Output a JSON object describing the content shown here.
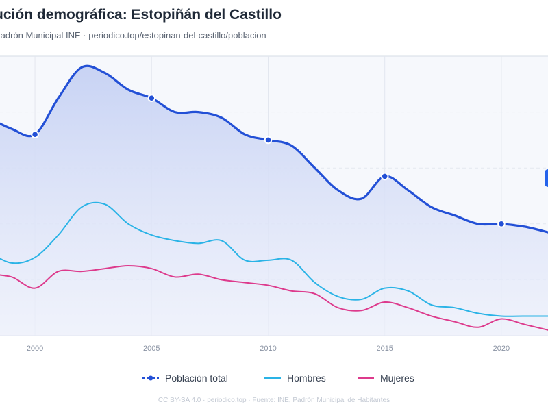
{
  "title": "ución demográfica: Estopiñán del Castillo",
  "subtitle": "- Padrón Municipal INE · periodico.top/estopinan-del-castillo/poblacion",
  "footer": "CC BY-SA 4.0 · periodico.top · Fuente: INE, Padrón Municipal de Habitantes",
  "colors": {
    "total": "#2350d6",
    "hombres": "#2ab3e6",
    "mujeres": "#dd3a8c",
    "area_top": "#c8d3f4",
    "area_bottom": "#edf0fb",
    "plot_bg": "#f6f8fc",
    "grid": "#e3e7ef"
  },
  "chart_data": {
    "type": "line",
    "title": "ución demográfica: Estopiñán del Castillo",
    "xlabel": "",
    "ylabel": "",
    "x_ticks": [
      2000,
      2005,
      2010,
      2015,
      2020
    ],
    "xlim": [
      1998.5,
      2022
    ],
    "ylim": [
      0,
      100
    ],
    "grid": true,
    "legend_position": "bottom",
    "x": [
      1998,
      1999,
      2000,
      2001,
      2002,
      2003,
      2004,
      2005,
      2006,
      2007,
      2008,
      2009,
      2010,
      2011,
      2012,
      2013,
      2014,
      2015,
      2016,
      2017,
      2018,
      2019,
      2020,
      2021,
      2022
    ],
    "series": [
      {
        "name": "Población total",
        "role": "total",
        "values": [
          78,
          74,
          72,
          85,
          96,
          94,
          88,
          85,
          80,
          80,
          78,
          72,
          70,
          68,
          60,
          52,
          49,
          57,
          52,
          46,
          43,
          40,
          40,
          39,
          37
        ],
        "markers": [
          2000,
          2005,
          2010,
          2015,
          2020
        ]
      },
      {
        "name": "Hombres",
        "role": "hombres",
        "values": [
          30,
          26,
          28,
          36,
          46,
          47,
          40,
          36,
          34,
          33,
          34,
          27,
          27,
          27,
          19,
          14,
          13,
          17,
          16,
          11,
          10,
          8,
          7,
          7,
          7
        ]
      },
      {
        "name": "Mujeres",
        "role": "mujeres",
        "values": [
          22,
          21,
          17,
          23,
          23,
          24,
          25,
          24,
          21,
          22,
          20,
          19,
          18,
          16,
          15,
          10,
          9,
          12,
          10,
          7,
          5,
          3,
          6,
          4,
          2
        ]
      }
    ]
  }
}
